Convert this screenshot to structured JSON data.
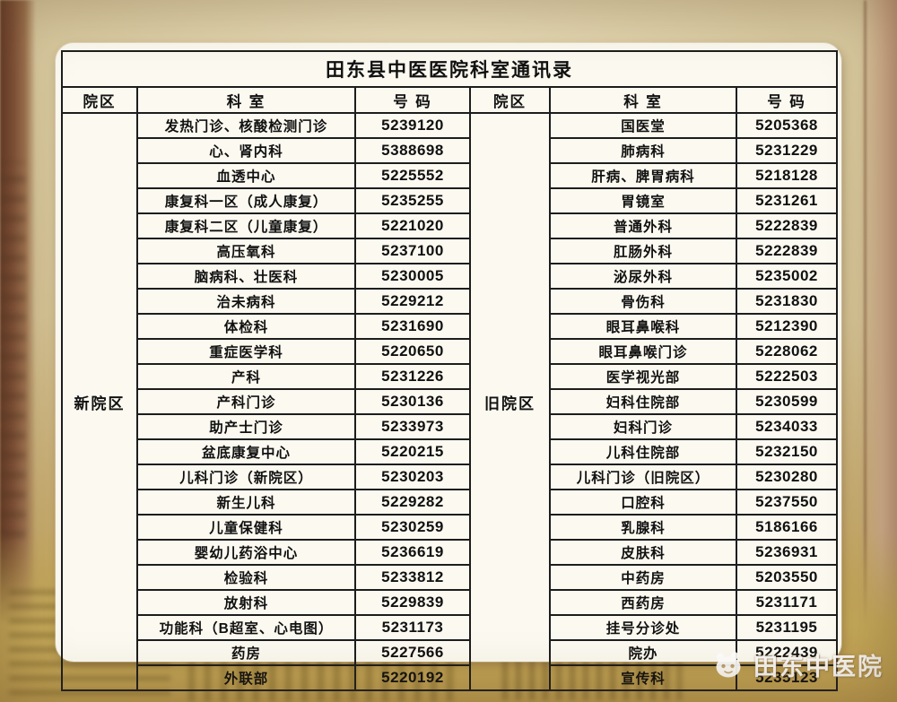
{
  "title": "田东县中医医院科室通讯录",
  "headers": {
    "campus": "院区",
    "department": "科 室",
    "number": "号 码"
  },
  "watermark": {
    "text": "田东中医院"
  },
  "groups": [
    {
      "campus": "新院区",
      "rows": [
        {
          "dept": "发热门诊、核酸检测门诊",
          "phone": "5239120"
        },
        {
          "dept": "心、肾内科",
          "phone": "5388698"
        },
        {
          "dept": "血透中心",
          "phone": "5225552"
        },
        {
          "dept": "康复科一区（成人康复）",
          "phone": "5235255"
        },
        {
          "dept": "康复科二区（儿童康复）",
          "phone": "5221020"
        },
        {
          "dept": "高压氧科",
          "phone": "5237100"
        },
        {
          "dept": "脑病科、壮医科",
          "phone": "5230005"
        },
        {
          "dept": "治未病科",
          "phone": "5229212"
        },
        {
          "dept": "体检科",
          "phone": "5231690"
        },
        {
          "dept": "重症医学科",
          "phone": "5220650"
        },
        {
          "dept": "产科",
          "phone": "5231226"
        },
        {
          "dept": "产科门诊",
          "phone": "5230136"
        },
        {
          "dept": "助产士门诊",
          "phone": "5233973"
        },
        {
          "dept": "盆底康复中心",
          "phone": "5220215"
        },
        {
          "dept": "儿科门诊（新院区）",
          "phone": "5230203"
        },
        {
          "dept": "新生儿科",
          "phone": "5229282"
        },
        {
          "dept": "儿童保健科",
          "phone": "5230259"
        },
        {
          "dept": "婴幼儿药浴中心",
          "phone": "5236619"
        },
        {
          "dept": "检验科",
          "phone": "5233812"
        },
        {
          "dept": "放射科",
          "phone": "5229839"
        },
        {
          "dept": "功能科（B超室、心电图）",
          "phone": "5231173"
        },
        {
          "dept": "药房",
          "phone": "5227566"
        },
        {
          "dept": "外联部",
          "phone": "5220192"
        }
      ]
    },
    {
      "campus": "旧院区",
      "rows": [
        {
          "dept": "国医堂",
          "phone": "5205368"
        },
        {
          "dept": "肺病科",
          "phone": "5231229"
        },
        {
          "dept": "肝病、脾胃病科",
          "phone": "5218128"
        },
        {
          "dept": "胃镜室",
          "phone": "5231261"
        },
        {
          "dept": "普通外科",
          "phone": "5222839"
        },
        {
          "dept": "肛肠外科",
          "phone": "5222839"
        },
        {
          "dept": "泌尿外科",
          "phone": "5235002"
        },
        {
          "dept": "骨伤科",
          "phone": "5231830"
        },
        {
          "dept": "眼耳鼻喉科",
          "phone": "5212390"
        },
        {
          "dept": "眼耳鼻喉门诊",
          "phone": "5228062"
        },
        {
          "dept": "医学视光部",
          "phone": "5222503"
        },
        {
          "dept": "妇科住院部",
          "phone": "5230599"
        },
        {
          "dept": "妇科门诊",
          "phone": "5234033"
        },
        {
          "dept": "儿科住院部",
          "phone": "5232150"
        },
        {
          "dept": "儿科门诊（旧院区）",
          "phone": "5230280"
        },
        {
          "dept": "口腔科",
          "phone": "5237550"
        },
        {
          "dept": "乳腺科",
          "phone": "5186166"
        },
        {
          "dept": "皮肤科",
          "phone": "5236931"
        },
        {
          "dept": "中药房",
          "phone": "5203550"
        },
        {
          "dept": "西药房",
          "phone": "5231171"
        },
        {
          "dept": "挂号分诊处",
          "phone": "5231195"
        },
        {
          "dept": "院办",
          "phone": "5222439"
        },
        {
          "dept": "宣传科",
          "phone": "5235123"
        }
      ]
    }
  ]
}
